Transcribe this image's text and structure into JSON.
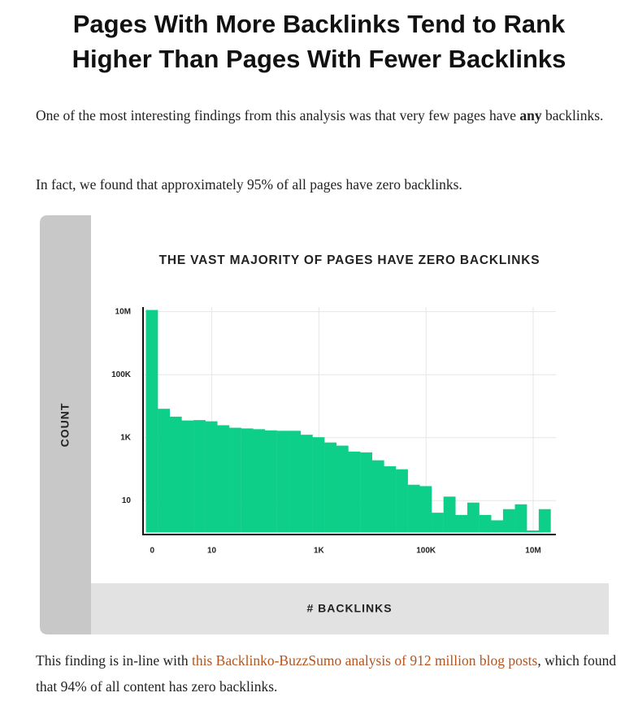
{
  "header": {
    "title_lines": [
      "Pages With More Backlinks Tend to Rank",
      "Higher Than Pages With Fewer Backlinks"
    ]
  },
  "paragraphs": [
    {
      "parts": [
        {
          "text": "One of the most interesting findings from this analysis was that very few pages have "
        },
        {
          "text": "any",
          "bold": true
        },
        {
          "text": " backlinks."
        }
      ]
    },
    {
      "parts": [
        {
          "text": "In fact, we found that approximately 95% of all pages have zero backlinks."
        }
      ]
    },
    {
      "parts": [
        {
          "text": "This finding is in-line with "
        },
        {
          "text": "this Backlinko-BuzzSumo analysis of 912 million blog posts",
          "link": true
        },
        {
          "text": ", which found that 94% of all content has zero backlinks."
        }
      ]
    }
  ],
  "chart_data": {
    "type": "bar",
    "title": "THE VAST MAJORITY OF PAGES HAVE ZERO BACKLINKS",
    "x_label": "# BACKLINKS",
    "y_label": "COUNT",
    "categories": [
      "0",
      null,
      null,
      null,
      null,
      "10",
      null,
      null,
      null,
      null,
      null,
      null,
      null,
      null,
      "1K",
      null,
      null,
      null,
      null,
      null,
      null,
      null,
      null,
      "100K",
      null,
      null,
      null,
      null,
      null,
      null,
      null,
      null,
      "10M",
      null
    ],
    "values": [
      11000000,
      8000,
      4500,
      3400,
      3500,
      3200,
      2400,
      2000,
      1900,
      1800,
      1650,
      1600,
      1600,
      1200,
      1000,
      680,
      540,
      350,
      330,
      185,
      120,
      96,
      31,
      28,
      4,
      13,
      3.4,
      8.4,
      3.4,
      2.3,
      5.2,
      7.4,
      1,
      5.2
    ],
    "color": "#0ecf89",
    "yscale": "log",
    "ylim": [
      1,
      14000000
    ],
    "yticks": [
      {
        "value": 10000000,
        "label": "10M"
      },
      {
        "value": 100000,
        "label": "100K"
      },
      {
        "value": 1000,
        "label": "1K"
      },
      10
    ],
    "grid": true
  }
}
